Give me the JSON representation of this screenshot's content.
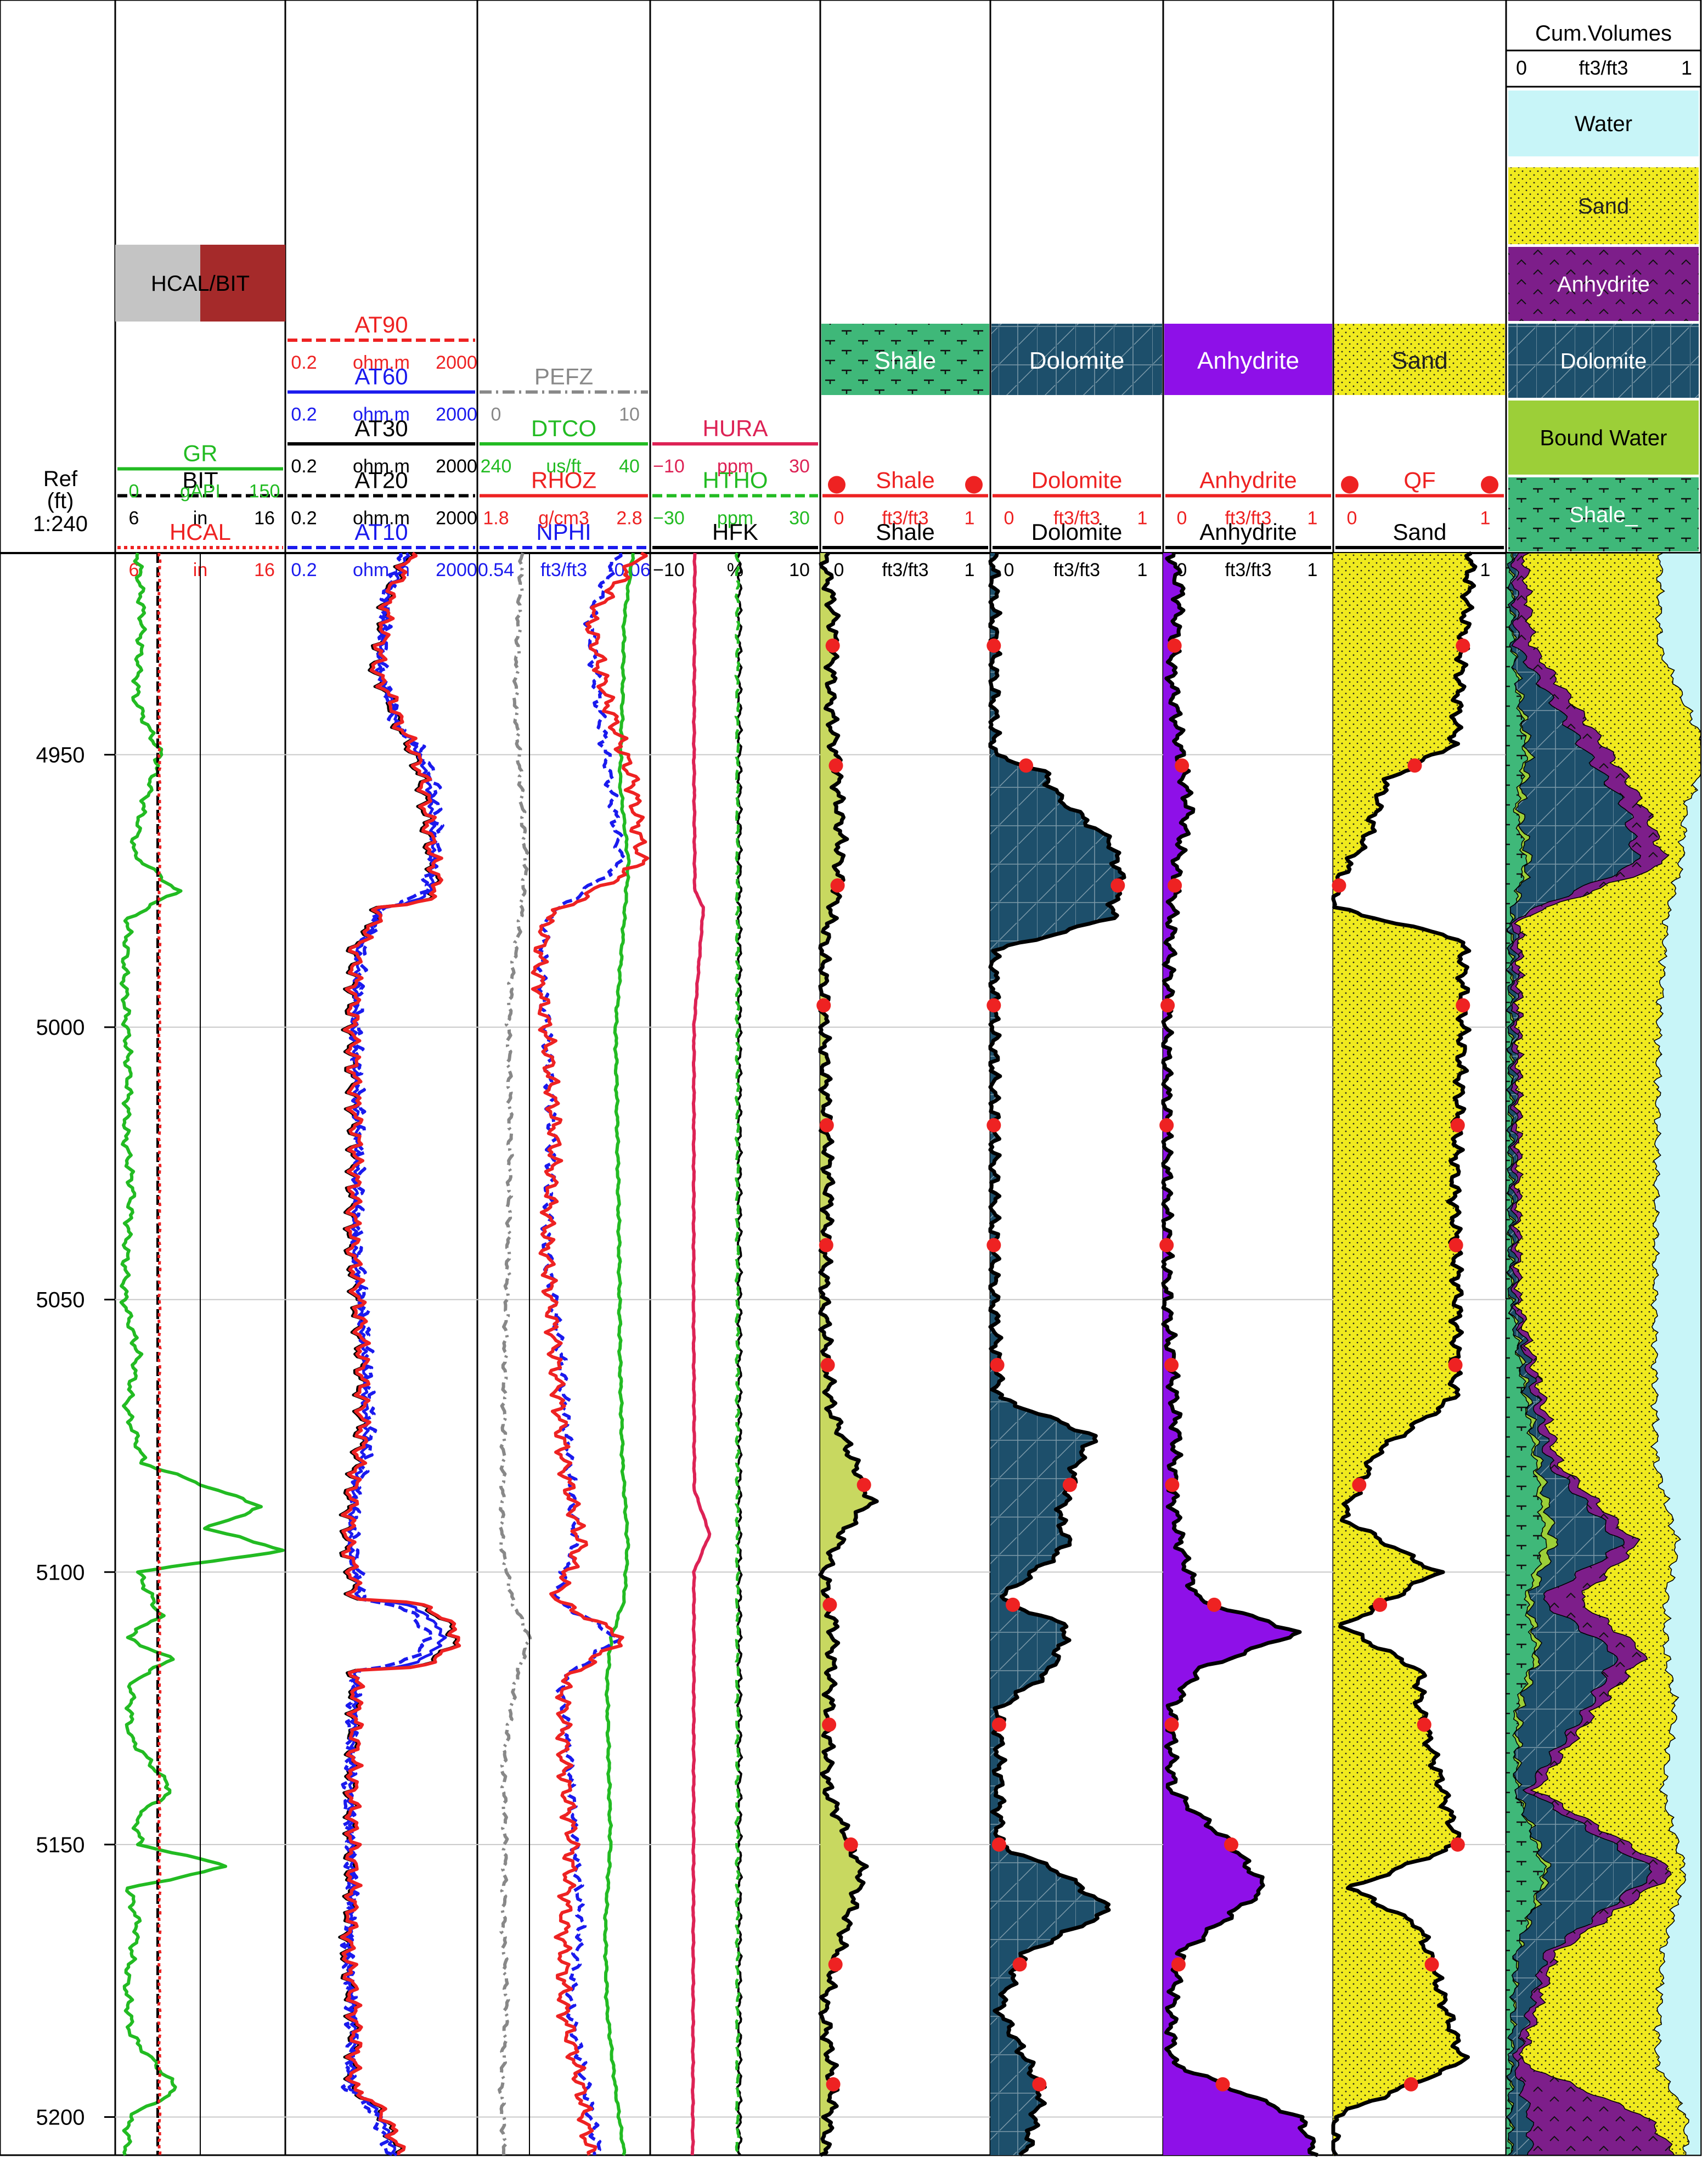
{
  "chart_data": {
    "type": "line",
    "title": "",
    "depth": {
      "header": "Ref",
      "unit": "(ft)",
      "scale": "1:240",
      "range_ft": [
        4913,
        5207
      ],
      "ticks": [
        "4950",
        "5000",
        "5050",
        "5100",
        "5150",
        "5200"
      ]
    },
    "tracks": [
      {
        "id": "track1",
        "fill_label": "HCAL/BIT",
        "curves": [
          {
            "name": "GR",
            "unit": "gAPI",
            "min": "0",
            "max": "150",
            "color": "#22bb22",
            "dash": "solid"
          },
          {
            "name": "BIT",
            "unit": "in",
            "min": "6",
            "max": "16",
            "color": "#000000",
            "dash": "dashed"
          },
          {
            "name": "HCAL",
            "unit": "in",
            "min": "6",
            "max": "16",
            "color": "#ee2222",
            "dash": "dotted"
          }
        ],
        "samples": {
          "depth": [
            4913,
            4925,
            4940,
            4950,
            4960,
            4968,
            4975,
            4980,
            4990,
            5000,
            5010,
            5020,
            5030,
            5040,
            5050,
            5060,
            5070,
            5080,
            5088,
            5092,
            5096,
            5100,
            5108,
            5112,
            5116,
            5120,
            5130,
            5140,
            5145,
            5150,
            5154,
            5158,
            5165,
            5175,
            5185,
            5195,
            5200,
            5207
          ],
          "GR": [
            20,
            24,
            18,
            40,
            24,
            15,
            55,
            12,
            8,
            10,
            12,
            9,
            15,
            10,
            8,
            20,
            10,
            25,
            130,
            80,
            150,
            20,
            40,
            10,
            50,
            15,
            12,
            50,
            18,
            22,
            100,
            12,
            20,
            10,
            14,
            55,
            12,
            10
          ]
        }
      },
      {
        "id": "track2",
        "curves": [
          {
            "name": "AT90",
            "unit": "ohm.m",
            "min": "0.2",
            "max": "2000",
            "color": "#ee2222",
            "dash": "dashed"
          },
          {
            "name": "AT60",
            "unit": "ohm.m",
            "min": "0.2",
            "max": "2000",
            "color": "#1a1aee",
            "dash": "solid"
          },
          {
            "name": "AT30",
            "unit": "ohm.m",
            "min": "0.2",
            "max": "2000",
            "color": "#000000",
            "dash": "solid"
          },
          {
            "name": "AT20",
            "unit": "ohm.m",
            "min": "0.2",
            "max": "2000",
            "color": "#000000",
            "dash": "dashed"
          },
          {
            "name": "AT10",
            "unit": "ohm.m",
            "min": "0.2",
            "max": "2000",
            "color": "#1a1aee",
            "dash": "dashed"
          }
        ],
        "samples": {
          "depth": [
            4913,
            4920,
            4935,
            4945,
            4955,
            4965,
            4975,
            4978,
            4985,
            5000,
            5020,
            5040,
            5060,
            5075,
            5085,
            5095,
            5105,
            5112,
            5118,
            5125,
            5140,
            5160,
            5170,
            5185,
            5195,
            5207
          ],
          "AT10": [
            60,
            25,
            20,
            40,
            250,
            300,
            150,
            20,
            8,
            6,
            7,
            6,
            10,
            12,
            6,
            5,
            8,
            200,
            6,
            5,
            4,
            5,
            4,
            5,
            4,
            30
          ],
          "AT90": [
            80,
            30,
            15,
            50,
            150,
            200,
            300,
            20,
            6,
            5,
            6,
            5,
            8,
            8,
            5,
            4,
            6,
            800,
            6,
            6,
            5,
            5,
            4,
            6,
            5,
            50
          ]
        }
      },
      {
        "id": "track3",
        "curves": [
          {
            "name": "PEFZ",
            "unit": "",
            "min": "0",
            "max": "10",
            "color": "#888888",
            "dash": "dashdot"
          },
          {
            "name": "DTCO",
            "unit": "us/ft",
            "min": "240",
            "max": "40",
            "color": "#22bb22",
            "dash": "solid"
          },
          {
            "name": "RHOZ",
            "unit": "g/cm3",
            "min": "1.8",
            "max": "2.8",
            "color": "#ee2222",
            "dash": "solid"
          },
          {
            "name": "NPHI",
            "unit": "ft3/ft3",
            "min": "0.54",
            "max": "-0.06",
            "color": "#1a1aee",
            "dash": "dashed"
          }
        ],
        "samples": {
          "depth": [
            4913,
            4925,
            4940,
            4955,
            4970,
            4980,
            4990,
            5000,
            5020,
            5040,
            5060,
            5080,
            5095,
            5105,
            5112,
            5120,
            5135,
            5150,
            5165,
            5180,
            5195,
            5207
          ],
          "PEFZ": [
            2.6,
            2.4,
            2.2,
            2.5,
            2.8,
            2.5,
            2.0,
            1.8,
            1.9,
            1.8,
            1.6,
            1.5,
            1.4,
            2.0,
            3.0,
            2.2,
            1.5,
            1.6,
            1.5,
            1.7,
            1.4,
            1.6
          ],
          "DTCO": [
            60,
            70,
            72,
            75,
            65,
            70,
            75,
            80,
            78,
            76,
            75,
            72,
            66,
            70,
            85,
            90,
            88,
            86,
            92,
            90,
            80,
            70
          ],
          "RHOZ": [
            2.75,
            2.45,
            2.55,
            2.7,
            2.75,
            2.2,
            2.15,
            2.2,
            2.25,
            2.2,
            2.25,
            2.3,
            2.4,
            2.25,
            2.65,
            2.3,
            2.3,
            2.35,
            2.3,
            2.3,
            2.4,
            2.45
          ],
          "NPHI": [
            0.05,
            0.15,
            0.12,
            0.08,
            0.04,
            0.3,
            0.32,
            0.3,
            0.28,
            0.3,
            0.25,
            0.22,
            0.2,
            0.27,
            0.05,
            0.25,
            0.22,
            0.2,
            0.18,
            0.22,
            0.16,
            0.12
          ]
        }
      },
      {
        "id": "track4",
        "curves": [
          {
            "name": "HURA",
            "unit": "ppm",
            "min": "−10",
            "max": "30",
            "color": "#dd2255",
            "dash": "solid"
          },
          {
            "name": "HTHO",
            "unit": "ppm",
            "min": "−30",
            "max": "30",
            "color": "#22bb22",
            "dash": "dashed"
          },
          {
            "name": "HFK",
            "unit": "%",
            "min": "−10",
            "max": "10",
            "color": "#000000",
            "dash": "solid"
          }
        ],
        "samples": {
          "depth": [
            4913,
            4950,
            4975,
            4978,
            5000,
            5050,
            5085,
            5093,
            5100,
            5150,
            5207
          ],
          "HURA": [
            0.5,
            0.3,
            0.5,
            2.5,
            0.3,
            0.2,
            0.4,
            4,
            0.3,
            0.2,
            0.0
          ]
        }
      },
      {
        "id": "track5",
        "fill_label": "Shale",
        "fill_color": "#3fb879",
        "curves": [
          {
            "name": "Shale",
            "unit": "ft3/ft3",
            "min": "0",
            "max": "1",
            "color": "#ee2222",
            "dash": "solid",
            "markers": "circle"
          },
          {
            "name": "Shale",
            "unit": "ft3/ft3",
            "min": "0",
            "max": "1",
            "color": "#000000",
            "dash": "solid"
          }
        ],
        "samples": {
          "depth": [
            4913,
            4925,
            4940,
            4955,
            4965,
            4975,
            4985,
            5000,
            5030,
            5050,
            5070,
            5080,
            5087,
            5092,
            5100,
            5110,
            5120,
            5140,
            5155,
            5165,
            5180,
            5195,
            5207
          ],
          "volume": [
            0.02,
            0.08,
            0.06,
            0.1,
            0.12,
            0.1,
            0.02,
            0.02,
            0.05,
            0.02,
            0.06,
            0.2,
            0.3,
            0.15,
            0.02,
            0.08,
            0.06,
            0.04,
            0.25,
            0.15,
            0.02,
            0.08,
            0.02
          ]
        }
      },
      {
        "id": "track6",
        "fill_label": "Dolomite",
        "fill_color": "#1d4f6b",
        "curves": [
          {
            "name": "Dolomite",
            "unit": "ft3/ft3",
            "min": "0",
            "max": "1",
            "color": "#ee2222",
            "dash": "solid"
          },
          {
            "name": "Dolomite",
            "unit": "ft3/ft3",
            "min": "0",
            "max": "1",
            "color": "#000000",
            "dash": "solid"
          }
        ],
        "samples": {
          "depth": [
            4913,
            4950,
            4953,
            4958,
            4966,
            4972,
            4980,
            4986,
            5000,
            5050,
            5068,
            5075,
            5080,
            5090,
            5095,
            5105,
            5110,
            5118,
            5125,
            5150,
            5155,
            5162,
            5170,
            5180,
            5195,
            5207
          ],
          "volume": [
            0.02,
            0.02,
            0.3,
            0.4,
            0.7,
            0.75,
            0.7,
            0.02,
            0.02,
            0.02,
            0.05,
            0.6,
            0.5,
            0.4,
            0.45,
            0.05,
            0.45,
            0.35,
            0.05,
            0.05,
            0.4,
            0.7,
            0.2,
            0.05,
            0.3,
            0.2
          ]
        }
      },
      {
        "id": "track7",
        "fill_label": "Anhydrite",
        "fill_color": "#8e10e8",
        "curves": [
          {
            "name": "Anhydrite",
            "unit": "ft3/ft3",
            "min": "0",
            "max": "1",
            "color": "#ee2222",
            "dash": "solid"
          },
          {
            "name": "Anhydrite",
            "unit": "ft3/ft3",
            "min": "0",
            "max": "1",
            "color": "#000000",
            "dash": "solid"
          }
        ],
        "samples": {
          "depth": [
            4913,
            4920,
            4935,
            4950,
            4960,
            4970,
            4980,
            5000,
            5050,
            5075,
            5085,
            5095,
            5105,
            5111,
            5118,
            5125,
            5140,
            5150,
            5158,
            5170,
            5180,
            5190,
            5200,
            5207
          ],
          "volume": [
            0.05,
            0.1,
            0.05,
            0.1,
            0.15,
            0.08,
            0.05,
            0.02,
            0.02,
            0.08,
            0.05,
            0.1,
            0.2,
            0.8,
            0.2,
            0.05,
            0.05,
            0.4,
            0.6,
            0.1,
            0.05,
            0.05,
            0.8,
            0.9
          ]
        }
      },
      {
        "id": "track8",
        "fill_label": "Sand",
        "fill_color": "#f0ea1e",
        "curves": [
          {
            "name": "QF",
            "unit": "",
            "min": "0",
            "max": "1",
            "color": "#ee2222",
            "dash": "solid"
          },
          {
            "name": "Sand",
            "unit": "ft3/ft3",
            "min": "0",
            "max": "1",
            "color": "#000000",
            "dash": "solid"
          }
        ],
        "samples": {
          "depth": [
            4913,
            4930,
            4948,
            4955,
            4965,
            4972,
            4978,
            4984,
            5000,
            5030,
            5050,
            5068,
            5078,
            5090,
            5100,
            5110,
            5118,
            5125,
            5150,
            5158,
            5165,
            5175,
            5190,
            5200,
            5207
          ],
          "volume": [
            0.8,
            0.75,
            0.7,
            0.3,
            0.2,
            0.05,
            0.0,
            0.75,
            0.75,
            0.7,
            0.72,
            0.7,
            0.25,
            0.05,
            0.6,
            0.05,
            0.5,
            0.5,
            0.72,
            0.1,
            0.5,
            0.6,
            0.75,
            0.0,
            0.0
          ]
        }
      },
      {
        "id": "track9",
        "title": "Cum.Volumes",
        "unit": "ft3/ft3",
        "min": "0",
        "max": "1",
        "legend": [
          {
            "label": "Water",
            "color": "#c8f5f8"
          },
          {
            "label": "Sand",
            "color": "#f0ea1e"
          },
          {
            "label": "Anhydrite",
            "color": "#7d1e8a"
          },
          {
            "label": "Dolomite",
            "color": "#1d4f6b"
          },
          {
            "label": "Bound Water",
            "color": "#9ccf38"
          },
          {
            "label": "Shale_",
            "color": "#3fb879"
          }
        ],
        "samples": {
          "depth": [
            4913,
            4930,
            4950,
            4960,
            4970,
            4980,
            5000,
            5050,
            5080,
            5095,
            5105,
            5115,
            5125,
            5140,
            5155,
            5170,
            5190,
            5200,
            5207
          ],
          "Shale_": [
            0.02,
            0.03,
            0.1,
            0.05,
            0.1,
            0.02,
            0.02,
            0.02,
            0.15,
            0.2,
            0.1,
            0.15,
            0.05,
            0.05,
            0.2,
            0.05,
            0.02,
            0.02,
            0.02
          ],
          "Bound Water": [
            0.0,
            0.0,
            0.02,
            0.02,
            0.02,
            0.0,
            0.0,
            0.0,
            0.02,
            0.05,
            0.02,
            0.02,
            0.02,
            0.0,
            0.02,
            0.0,
            0.0,
            0.0,
            0.0
          ],
          "Dolomite": [
            0.02,
            0.02,
            0.3,
            0.55,
            0.55,
            0.02,
            0.02,
            0.02,
            0.05,
            0.35,
            0.05,
            0.4,
            0.35,
            0.05,
            0.55,
            0.15,
            0.02,
            0.1,
            0.1
          ],
          "Anhydrite": [
            0.05,
            0.08,
            0.12,
            0.1,
            0.15,
            0.03,
            0.02,
            0.02,
            0.05,
            0.08,
            0.2,
            0.15,
            0.05,
            0.05,
            0.1,
            0.05,
            0.03,
            0.6,
            0.75
          ],
          "Sand": [
            0.7,
            0.65,
            0.5,
            0.2,
            0.08,
            0.75,
            0.72,
            0.7,
            0.5,
            0.2,
            0.45,
            0.1,
            0.4,
            0.65,
            0.05,
            0.55,
            0.7,
            0.2,
            0.05
          ],
          "Water": [
            0.21,
            0.22,
            0.0,
            0.08,
            0.1,
            0.2,
            0.24,
            0.26,
            0.23,
            0.12,
            0.18,
            0.18,
            0.13,
            0.2,
            0.08,
            0.2,
            0.25,
            0.08,
            0.08
          ]
        }
      }
    ]
  }
}
